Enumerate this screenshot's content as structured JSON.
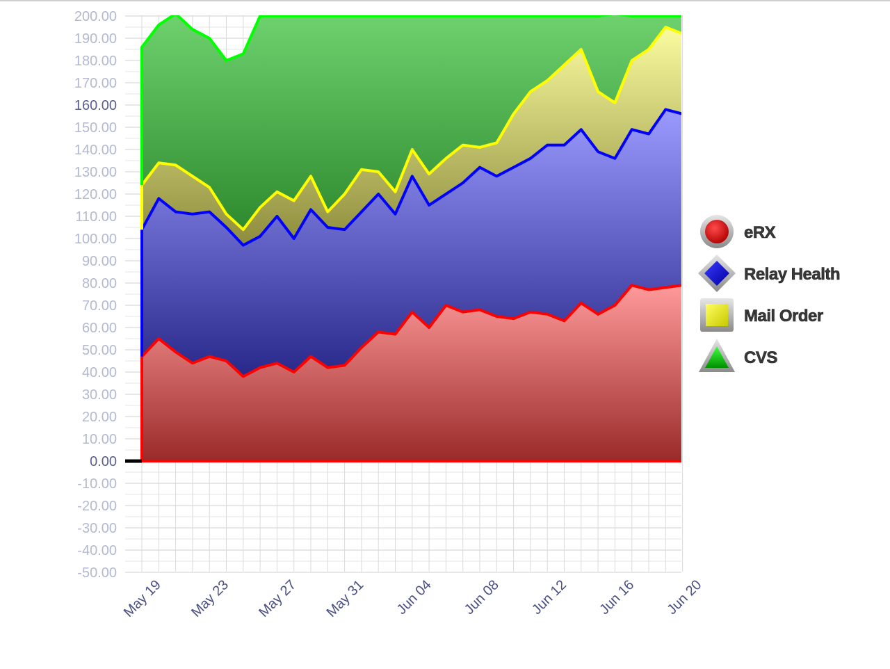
{
  "chart_data": {
    "type": "area",
    "stacked": true,
    "title": "",
    "xlabel": "",
    "ylabel": "",
    "ylim": [
      -50,
      200
    ],
    "y_tick_step": 10,
    "y_tick_format": "0.00",
    "x": [
      "May 18",
      "May 19",
      "May 20",
      "May 21",
      "May 22",
      "May 23",
      "May 24",
      "May 25",
      "May 26",
      "May 27",
      "May 28",
      "May 29",
      "May 30",
      "May 31",
      "Jun 01",
      "Jun 02",
      "Jun 03",
      "Jun 04",
      "Jun 05",
      "Jun 06",
      "Jun 07",
      "Jun 08",
      "Jun 09",
      "Jun 10",
      "Jun 11",
      "Jun 12",
      "Jun 13",
      "Jun 14",
      "Jun 15",
      "Jun 16",
      "Jun 17",
      "Jun 18",
      "Jun 19"
    ],
    "x_tick_labels": [
      "May 19",
      "May 23",
      "May 27",
      "May 31",
      "Jun 04",
      "Jun 08",
      "Jun 12",
      "Jun 16",
      "Jun 20"
    ],
    "grid": true,
    "legend_position": "right",
    "series": [
      {
        "name": "eRX",
        "color": "#ff0000",
        "marker": "circle",
        "values": [
          47,
          55,
          49,
          44,
          47,
          45,
          38,
          42,
          44,
          40,
          47,
          42,
          43,
          51,
          58,
          57,
          67,
          60,
          70,
          67,
          68,
          65,
          64,
          67,
          66,
          63,
          71,
          66,
          70,
          79,
          77,
          78,
          79
        ]
      },
      {
        "name": "Relay Health",
        "color": "#0000ff",
        "marker": "diamond",
        "values": [
          57,
          63,
          63,
          67,
          65,
          60,
          59,
          59,
          66,
          60,
          66,
          63,
          61,
          61,
          62,
          54,
          61,
          55,
          50,
          58,
          64,
          63,
          68,
          69,
          76,
          79,
          78,
          73,
          66,
          70,
          70,
          80,
          77
        ]
      },
      {
        "name": "Mail Order",
        "color": "#ffff00",
        "marker": "square",
        "values": [
          20,
          16,
          21,
          17,
          11,
          6,
          7,
          13,
          11,
          17,
          15,
          7,
          16,
          19,
          10,
          10,
          12,
          14,
          16,
          17,
          9,
          15,
          24,
          30,
          29,
          36,
          36,
          27,
          25,
          31,
          38,
          37,
          36
        ]
      },
      {
        "name": "CVS",
        "color": "#00ff00",
        "marker": "triangle",
        "values": [
          62,
          62,
          68,
          66,
          67,
          69,
          79,
          86,
          79,
          83,
          72,
          88,
          80,
          69,
          70,
          79,
          60,
          71,
          64,
          58,
          59,
          57,
          44,
          34,
          29,
          22,
          15,
          34,
          40,
          20,
          15,
          5,
          8
        ]
      }
    ]
  }
}
